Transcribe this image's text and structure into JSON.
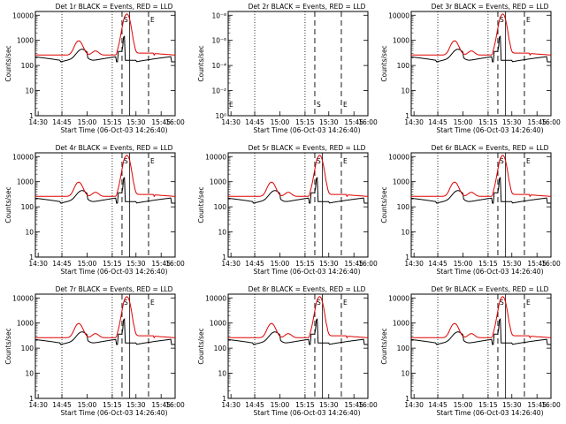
{
  "figure": {
    "xaxis_title": "Start Time (06-Oct-03 14:26:40)",
    "yaxis_title": "Counts/sec",
    "x_ticks": [
      "14:30",
      "14:45",
      "15:00",
      "15:15",
      "15:30",
      "15:45",
      "16:00"
    ],
    "y_ticks_log": [
      "1",
      "10",
      "100",
      "1000",
      "10000"
    ],
    "y_ticks_2r": [
      "10⁰",
      "10⁻²",
      "10⁻⁴",
      "10⁻⁶",
      "10⁻⁸"
    ],
    "marker_s": "S",
    "marker_e": "E",
    "colors": {
      "events": "#000000",
      "lld": "#e00000",
      "axes": "#000000"
    }
  },
  "chart_data": [
    {
      "type": "line",
      "title": "Det 1r BLACK = Events, RED = LLD",
      "xlabel": "Start Time (06-Oct-03 14:26:40)",
      "ylabel": "Counts/sec",
      "y_scale": "log",
      "ylim": [
        1,
        15000
      ],
      "series": [
        {
          "name": "Events",
          "color": "#000000"
        },
        {
          "name": "LLD",
          "color": "#e00000"
        }
      ]
    },
    {
      "type": "line",
      "title": "Det 2r BLACK = Events, RED = LLD",
      "xlabel": "Start Time (06-Oct-03 14:26:40)",
      "ylabel": "Counts/sec",
      "y_scale": "log",
      "empty": true
    },
    {
      "type": "line",
      "title": "Det 3r BLACK = Events, RED = LLD",
      "xlabel": "Start Time (06-Oct-03 14:26:40)",
      "ylabel": "Counts/sec",
      "y_scale": "log",
      "ylim": [
        1,
        15000
      ],
      "series": [
        {
          "name": "Events",
          "color": "#000000"
        },
        {
          "name": "LLD",
          "color": "#e00000"
        }
      ]
    },
    {
      "type": "line",
      "title": "Det 4r BLACK = Events, RED = LLD",
      "xlabel": "Start Time (06-Oct-03 14:26:40)",
      "ylabel": "Counts/sec",
      "y_scale": "log",
      "ylim": [
        1,
        15000
      ],
      "series": [
        {
          "name": "Events",
          "color": "#000000"
        },
        {
          "name": "LLD",
          "color": "#e00000"
        }
      ]
    },
    {
      "type": "line",
      "title": "Det 5r BLACK = Events, RED = LLD",
      "xlabel": "Start Time (06-Oct-03 14:26:40)",
      "ylabel": "Counts/sec",
      "y_scale": "log",
      "ylim": [
        1,
        15000
      ],
      "series": [
        {
          "name": "Events",
          "color": "#000000"
        },
        {
          "name": "LLD",
          "color": "#e00000"
        }
      ]
    },
    {
      "type": "line",
      "title": "Det 6r BLACK = Events, RED = LLD",
      "xlabel": "Start Time (06-Oct-03 14:26:40)",
      "ylabel": "Counts/sec",
      "y_scale": "log",
      "ylim": [
        1,
        15000
      ],
      "series": [
        {
          "name": "Events",
          "color": "#000000"
        },
        {
          "name": "LLD",
          "color": "#e00000"
        }
      ]
    },
    {
      "type": "line",
      "title": "Det 7r BLACK = Events, RED = LLD",
      "xlabel": "Start Time (06-Oct-03 14:26:40)",
      "ylabel": "Counts/sec",
      "y_scale": "log",
      "ylim": [
        1,
        15000
      ],
      "series": [
        {
          "name": "Events",
          "color": "#000000"
        },
        {
          "name": "LLD",
          "color": "#e00000"
        }
      ]
    },
    {
      "type": "line",
      "title": "Det 8r BLACK = Events, RED = LLD",
      "xlabel": "Start Time (06-Oct-03 14:26:40)",
      "ylabel": "Counts/sec",
      "y_scale": "log",
      "ylim": [
        1,
        15000
      ],
      "series": [
        {
          "name": "Events",
          "color": "#000000"
        },
        {
          "name": "LLD",
          "color": "#e00000"
        }
      ]
    },
    {
      "type": "line",
      "title": "Det 9r BLACK = Events, RED = LLD",
      "xlabel": "Start Time (06-Oct-03 14:26:40)",
      "ylabel": "Counts/sec",
      "y_scale": "log",
      "ylim": [
        1,
        15000
      ],
      "series": [
        {
          "name": "Events",
          "color": "#000000"
        },
        {
          "name": "LLD",
          "color": "#e00000"
        }
      ]
    }
  ]
}
